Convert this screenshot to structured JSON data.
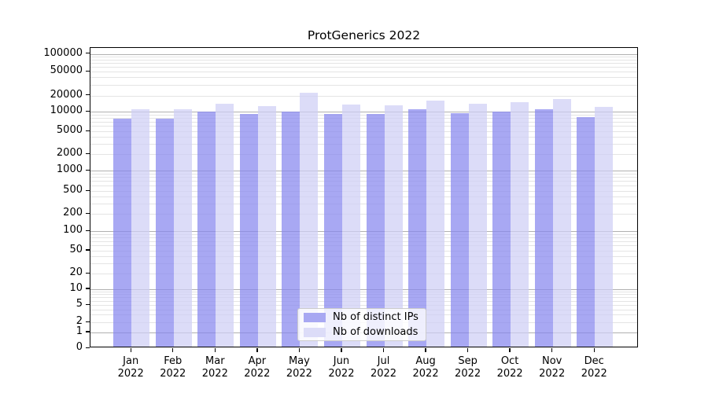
{
  "chart_data": {
    "type": "bar",
    "title": "ProtGenerics 2022",
    "x_categories": [
      "Jan",
      "Feb",
      "Mar",
      "Apr",
      "May",
      "Jun",
      "Jul",
      "Aug",
      "Sep",
      "Oct",
      "Nov",
      "Dec"
    ],
    "x_sublabel": "2022",
    "series": [
      {
        "name": "Nb of distinct IPs",
        "color": "#a8a8f2",
        "fill": "rgba(134,134,238,0.72)",
        "values": [
          7400,
          7400,
          9400,
          8700,
          9400,
          8700,
          8700,
          10300,
          8900,
          9500,
          10400,
          7700
        ]
      },
      {
        "name": "Nb of downloads",
        "color": "#dcdcf8",
        "fill": "rgba(206,206,245,0.72)",
        "values": [
          10400,
          10500,
          13200,
          12000,
          21000,
          12500,
          12300,
          14800,
          13000,
          14200,
          16000,
          11500
        ]
      }
    ],
    "y_axis": {
      "scale": "symlog",
      "tick_values": [
        0,
        1,
        2,
        5,
        10,
        20,
        50,
        100,
        200,
        500,
        1000,
        2000,
        5000,
        10000,
        20000,
        50000,
        100000
      ],
      "tick_labels": [
        "0",
        "1",
        "2",
        "5",
        "10",
        "20",
        "50",
        "100",
        "200",
        "500",
        "1000",
        "2000",
        "5000",
        "10000",
        "20000",
        "50000",
        "100000"
      ],
      "range": [
        0,
        100000
      ]
    },
    "grid": {
      "major": true,
      "minor": true,
      "major_color": "#b0b0b0",
      "minor_color": "#e4e4e4"
    },
    "legend": {
      "position": "bottom-center",
      "entries": [
        "Nb of distinct IPs",
        "Nb of downloads"
      ]
    }
  }
}
